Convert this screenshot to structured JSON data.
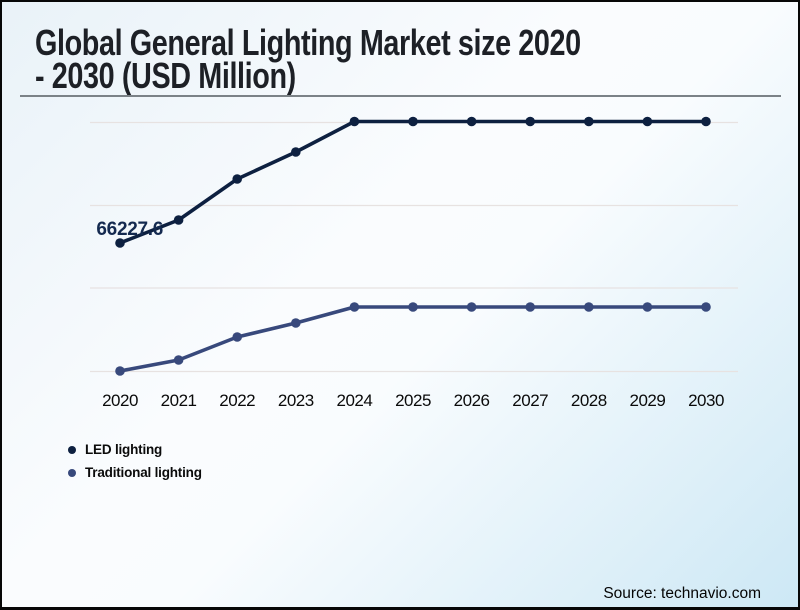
{
  "source_label": "Source: technavio.com",
  "chart_data": {
    "type": "line",
    "title": "Global General Lighting Market size 2020 - 2030 (USD Million)",
    "title_lines": [
      "Global General Lighting Market size 2020",
      "- 2030 (USD Million)"
    ],
    "x": [
      "2020",
      "2021",
      "2022",
      "2023",
      "2024",
      "2025",
      "2026",
      "2027",
      "2028",
      "2029",
      "2030"
    ],
    "series": [
      {
        "name": "LED lighting",
        "color": "#0d2040",
        "values": [
          66227.6,
          71772,
          81658,
          88168,
          95522,
          95522,
          95522,
          95522,
          95522,
          95522,
          95522
        ],
        "data_label": {
          "index": 0,
          "text": "66227.6"
        }
      },
      {
        "name": "Traditional lighting",
        "color": "#38497c",
        "values": [
          35367,
          38019,
          43564,
          46940,
          50797,
          50797,
          50797,
          50797,
          50797,
          50797,
          50797
        ]
      }
    ],
    "xlabel": "",
    "ylabel": "",
    "ylim": [
      32715,
      99017
    ],
    "grid": true,
    "gridline_values": [
      95280,
      75269,
      55378,
      35246
    ],
    "legend_position": "bottom-left",
    "y_axis_labels_visible": false
  }
}
